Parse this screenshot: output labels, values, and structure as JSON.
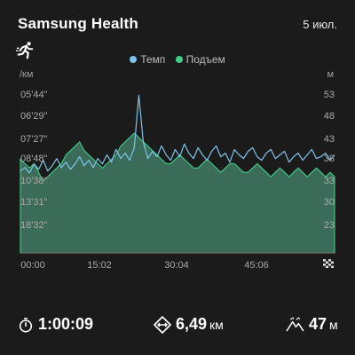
{
  "header": {
    "app_title": "Samsung Health",
    "date": "5 июл."
  },
  "activity": {
    "icon": "running-icon"
  },
  "chart_data": {
    "type": "area",
    "legend": [
      {
        "name": "Темп",
        "color": "#7ec3ea"
      },
      {
        "name": "Подъем",
        "color": "#3ecf86"
      }
    ],
    "left_axis_unit": "/км",
    "right_axis_unit": "м",
    "y_left_ticks": [
      "05'44\"",
      "06'29\"",
      "07'27\"",
      "08'48\"",
      "10'38\"",
      "13'31\"",
      "18'32\""
    ],
    "y_right_ticks": [
      "53",
      "48",
      "43",
      "38",
      "33",
      "30",
      "23"
    ],
    "x_ticks": [
      "00:00",
      "15:02",
      "30:04",
      "45:06"
    ],
    "x_range_minutes": [
      0,
      60.15
    ],
    "pace_speed_kmh": [
      6.2,
      6.4,
      6.1,
      6.6,
      6.3,
      6.8,
      6.2,
      6.5,
      6.9,
      6.4,
      6.7,
      6.3,
      6.6,
      7.0,
      6.5,
      6.8,
      6.4,
      6.9,
      6.6,
      7.1,
      6.7,
      7.4,
      6.9,
      7.2,
      6.8,
      7.5,
      10.4,
      7.8,
      6.9,
      7.3,
      7.0,
      7.6,
      7.1,
      6.8,
      7.4,
      7.0,
      7.7,
      7.2,
      6.9,
      7.5,
      7.1,
      6.8,
      7.3,
      7.6,
      7.0,
      7.2,
      6.7,
      7.4,
      7.1,
      6.9,
      7.3,
      7.5,
      7.0,
      6.8,
      7.2,
      7.4,
      6.9,
      7.1,
      7.3,
      6.7,
      7.0,
      7.2,
      6.8,
      7.1,
      7.4,
      6.9,
      7.0,
      7.2,
      6.8,
      7.1
    ],
    "elevation_m": [
      38,
      37,
      36,
      37,
      35,
      33,
      34,
      35,
      36,
      37,
      39,
      40,
      41,
      42,
      40,
      39,
      38,
      37,
      36,
      37,
      38,
      39,
      41,
      42,
      43,
      44,
      43,
      42,
      41,
      40,
      39,
      38,
      37,
      37,
      38,
      39,
      38,
      37,
      36,
      36,
      37,
      38,
      37,
      36,
      35,
      36,
      37,
      37,
      36,
      35,
      35,
      36,
      37,
      36,
      35,
      34,
      35,
      36,
      35,
      34,
      35,
      36,
      35,
      34,
      35,
      36,
      35,
      34,
      35,
      34
    ]
  },
  "stats": {
    "duration": {
      "icon": "stopwatch-icon",
      "value": "1:00:09"
    },
    "distance": {
      "icon": "distance-icon",
      "value": "6,49",
      "unit": "км"
    },
    "elevation": {
      "icon": "elevation-icon",
      "value": "47",
      "unit": "м"
    }
  }
}
